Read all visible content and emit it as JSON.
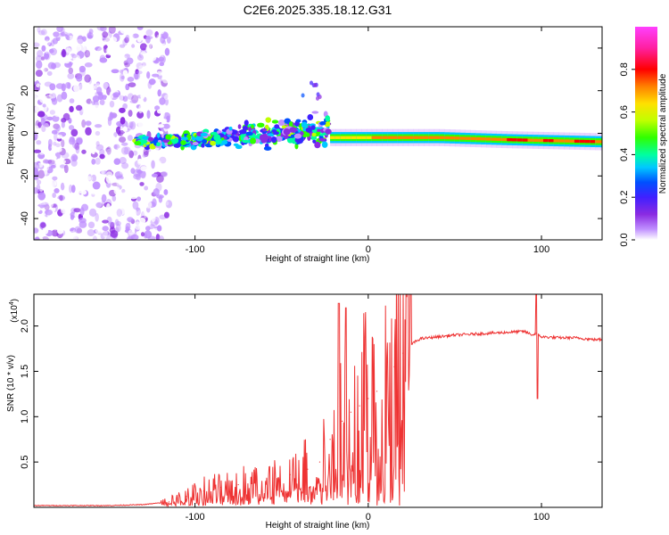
{
  "title": "C2E6.2025.335.18.12.G31",
  "chart_data": [
    {
      "type": "heatmap",
      "xlabel": "Height of straight line (km)",
      "ylabel": "Frequency (Hz)",
      "xlim": [
        -193,
        135
      ],
      "ylim": [
        -50,
        50
      ],
      "xticks": [
        -100,
        0,
        100
      ],
      "xtick_labels": [
        "-100",
        "0",
        "100"
      ],
      "yticks": [
        -40,
        -20,
        0,
        20,
        40
      ],
      "ytick_labels": [
        "-40",
        "-20",
        "0",
        "20",
        "40"
      ],
      "colorbar": {
        "label": "Normalized spectral amplitude",
        "range": [
          0,
          1
        ],
        "ticks": [
          0.0,
          0.2,
          0.4,
          0.6,
          0.8
        ],
        "tick_labels": [
          "0.0",
          "0.2",
          "0.4",
          "0.6",
          "0.8"
        ],
        "colormap": [
          "#ffffff",
          "#c090ff",
          "#8a2be2",
          "#4020ff",
          "#0050ff",
          "#00c8ff",
          "#00ffa0",
          "#30ff00",
          "#c0ff00",
          "#ffe000",
          "#ff8000",
          "#ff0000",
          "#ff20a0",
          "#ff40ff"
        ]
      },
      "regions": [
        {
          "name": "noise",
          "x_range": [
            -193,
            -120
          ],
          "freq_range": [
            -50,
            50
          ],
          "amplitude": 0.1
        },
        {
          "name": "transition",
          "x_range": [
            -135,
            -22
          ],
          "center_freq": [
            [
              -135,
              -4
            ],
            [
              -100,
              -3
            ],
            [
              -60,
              0
            ],
            [
              -22,
              2
            ]
          ],
          "amplitude": 0.35
        },
        {
          "name": "carrier",
          "x_range": [
            -22,
            135
          ],
          "center_freq": [
            [
              -22,
              -2
            ],
            [
              40,
              -2
            ],
            [
              80,
              -3
            ],
            [
              135,
              -4
            ]
          ],
          "amplitude": 0.9
        }
      ]
    },
    {
      "type": "line",
      "xlabel": "Height of straight line (km)",
      "ylabel": "SNR (10 * v/v)",
      "y_multiplier": "(x10",
      "y_multiplier_exp": "4",
      "xlim": [
        -193,
        135
      ],
      "ylim": [
        0,
        2.35
      ],
      "xticks": [
        -100,
        0,
        100
      ],
      "xtick_labels": [
        "-100",
        "0",
        "100"
      ],
      "yticks": [
        0.5,
        1.0,
        1.5,
        2.0
      ],
      "ytick_labels": [
        "0.5",
        "1.0",
        "1.5",
        "2.0"
      ],
      "series": [
        {
          "name": "SNR",
          "color": "#ee3333",
          "x": [
            -193,
            -170,
            -150,
            -130,
            -115,
            -105,
            -95,
            -85,
            -75,
            -65,
            -55,
            -45,
            -35,
            -28,
            -22,
            -15,
            -10,
            -5,
            0,
            5,
            10,
            15,
            20,
            25,
            30,
            40,
            50,
            60,
            70,
            80,
            90,
            95,
            97,
            100,
            110,
            120,
            130,
            135
          ],
          "values": [
            0.02,
            0.02,
            0.02,
            0.03,
            0.06,
            0.12,
            0.18,
            0.22,
            0.25,
            0.28,
            0.32,
            0.36,
            0.42,
            0.5,
            0.75,
            0.95,
            1.05,
            1.12,
            1.2,
            1.28,
            1.4,
            1.55,
            1.7,
            1.8,
            1.86,
            1.88,
            1.9,
            1.91,
            1.92,
            1.93,
            1.94,
            1.9,
            1.92,
            1.88,
            1.87,
            1.87,
            1.85,
            1.85
          ]
        }
      ],
      "annotations": [
        {
          "x": -17,
          "peak": 2.25
        },
        {
          "x": -13,
          "peak": 2.2
        },
        {
          "x": 97,
          "peak": 2.35,
          "dip": 1.2
        }
      ]
    }
  ]
}
